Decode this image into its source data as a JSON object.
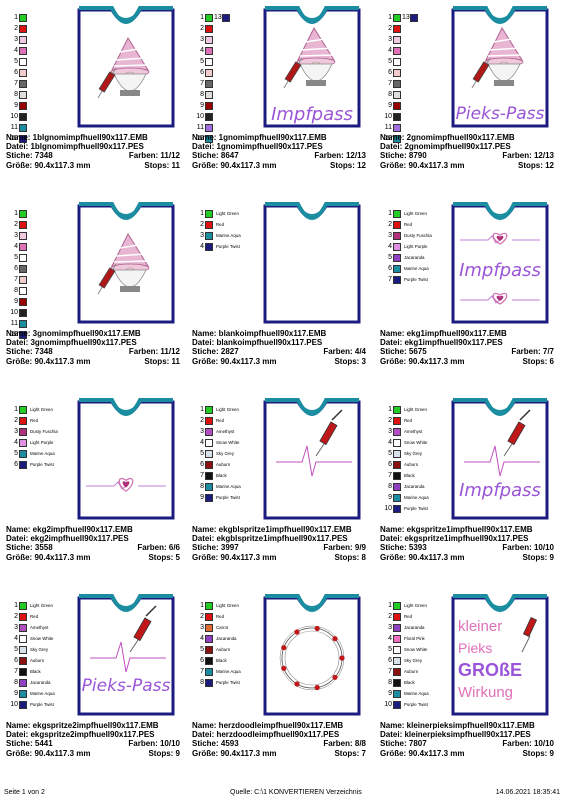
{
  "cells": [
    {
      "name": "Name: 1blgnomimpfhuell90x117.EMB",
      "datei": "Datei: 1blgnomimpfhuell90x117.PES",
      "stiche": "Stiche: 7348",
      "farben": "Farben: 11/12",
      "groesse": "Größe: 90.4x117.3 mm",
      "stops": "Stops: 11",
      "art": "gnome",
      "text": "",
      "swatches": [
        {
          "n": "1",
          "c": "#22cc22",
          "l": ""
        },
        {
          "n": "2",
          "c": "#dd1111",
          "l": ""
        },
        {
          "n": "3",
          "c": "#f0c8e0",
          "l": ""
        },
        {
          "n": "4",
          "c": "#e070b8",
          "l": ""
        },
        {
          "n": "5",
          "c": "#ffffff",
          "l": ""
        },
        {
          "n": "6",
          "c": "#f2cccc",
          "l": ""
        },
        {
          "n": "7",
          "c": "#666666",
          "l": ""
        },
        {
          "n": "8",
          "c": "#dddddd",
          "l": ""
        },
        {
          "n": "9",
          "c": "#990000",
          "l": ""
        },
        {
          "n": "10",
          "c": "#222222",
          "l": ""
        },
        {
          "n": "11",
          "c": "#1a8ea0",
          "l": ""
        },
        {
          "n": "12",
          "c": "#1c1c80",
          "l": ""
        }
      ]
    },
    {
      "name": "Name: 1gnomimpfhuell90x117.EMB",
      "datei": "Datei: 1gnomimpfhuell90x117.PES",
      "stiche": "Stiche: 8647",
      "farben": "Farben: 12/13",
      "groesse": "Größe: 90.4x117.3 mm",
      "stops": "Stops: 12",
      "art": "gnome",
      "text": "Impfpass",
      "extra": "13",
      "swatches": [
        {
          "n": "1",
          "c": "#22cc22",
          "l": ""
        },
        {
          "n": "2",
          "c": "#dd1111",
          "l": ""
        },
        {
          "n": "3",
          "c": "#f0c8e0",
          "l": ""
        },
        {
          "n": "4",
          "c": "#e070b8",
          "l": ""
        },
        {
          "n": "5",
          "c": "#ffffff",
          "l": ""
        },
        {
          "n": "6",
          "c": "#f2cccc",
          "l": ""
        },
        {
          "n": "7",
          "c": "#666666",
          "l": ""
        },
        {
          "n": "8",
          "c": "#dddddd",
          "l": ""
        },
        {
          "n": "9",
          "c": "#990000",
          "l": ""
        },
        {
          "n": "10",
          "c": "#222222",
          "l": ""
        },
        {
          "n": "11",
          "c": "#a070e0",
          "l": ""
        },
        {
          "n": "12",
          "c": "#1a8ea0",
          "l": ""
        }
      ]
    },
    {
      "name": "Name: 2gnomimpfhuell90x117.EMB",
      "datei": "Datei: 2gnomimpfhuell90x117.PES",
      "stiche": "Stiche: 8790",
      "farben": "Farben: 12/13",
      "groesse": "Größe: 90.4x117.3 mm",
      "stops": "Stops: 12",
      "art": "gnome",
      "text": "Pieks-Pass",
      "extra": "13",
      "swatches": [
        {
          "n": "1",
          "c": "#22cc22",
          "l": ""
        },
        {
          "n": "2",
          "c": "#dd1111",
          "l": ""
        },
        {
          "n": "3",
          "c": "#f0c8e0",
          "l": ""
        },
        {
          "n": "4",
          "c": "#e070b8",
          "l": ""
        },
        {
          "n": "5",
          "c": "#ffffff",
          "l": ""
        },
        {
          "n": "6",
          "c": "#f2cccc",
          "l": ""
        },
        {
          "n": "7",
          "c": "#666666",
          "l": ""
        },
        {
          "n": "8",
          "c": "#dddddd",
          "l": ""
        },
        {
          "n": "9",
          "c": "#990000",
          "l": ""
        },
        {
          "n": "10",
          "c": "#222222",
          "l": ""
        },
        {
          "n": "11",
          "c": "#a070e0",
          "l": ""
        },
        {
          "n": "12",
          "c": "#1a8ea0",
          "l": ""
        }
      ]
    },
    {
      "name": "Name: 3gnomimpfhuell90x117.EMB",
      "datei": "Datei: 3gnomimpfhuell90x117.PES",
      "stiche": "Stiche: 7348",
      "farben": "Farben: 11/12",
      "groesse": "Größe: 90.4x117.3 mm",
      "stops": "Stops: 11",
      "art": "gnome",
      "text": "",
      "swatches": [
        {
          "n": "1",
          "c": "#22cc22",
          "l": ""
        },
        {
          "n": "2",
          "c": "#dd1111",
          "l": ""
        },
        {
          "n": "3",
          "c": "#f0c8e0",
          "l": ""
        },
        {
          "n": "4",
          "c": "#e070b8",
          "l": ""
        },
        {
          "n": "5",
          "c": "#ffffff",
          "l": ""
        },
        {
          "n": "6",
          "c": "#666666",
          "l": ""
        },
        {
          "n": "7",
          "c": "#f2cccc",
          "l": ""
        },
        {
          "n": "8",
          "c": "#ffffff",
          "l": ""
        },
        {
          "n": "9",
          "c": "#990000",
          "l": ""
        },
        {
          "n": "10",
          "c": "#222222",
          "l": ""
        },
        {
          "n": "11",
          "c": "#1a8ea0",
          "l": ""
        },
        {
          "n": "12",
          "c": "#1c1c80",
          "l": ""
        }
      ]
    },
    {
      "name": "Name: blankoimpfhuell90x117.EMB",
      "datei": "Datei: blankoimpfhuell90x117.PES",
      "stiche": "Stiche: 2827",
      "farben": "Farben: 4/4",
      "groesse": "Größe: 90.4x117.3 mm",
      "stops": "Stops: 3",
      "art": "blank",
      "text": "",
      "swatches": [
        {
          "n": "1",
          "c": "#22cc22",
          "l": "Light Green"
        },
        {
          "n": "2",
          "c": "#dd1111",
          "l": "Red"
        },
        {
          "n": "3",
          "c": "#1a8ea0",
          "l": "Marine Aqua"
        },
        {
          "n": "4",
          "c": "#1c1c80",
          "l": "Purple Twist"
        }
      ]
    },
    {
      "name": "Name: ekg1impfhuell90x117.EMB",
      "datei": "Datei: ekg1impfhuell90x117.PES",
      "stiche": "Stiche: 5675",
      "farben": "Farben: 7/7",
      "groesse": "Größe: 90.4x117.3 mm",
      "stops": "Stops: 6",
      "art": "ekg2",
      "text": "Impfpass",
      "swatches": [
        {
          "n": "1",
          "c": "#22cc22",
          "l": "Light Green"
        },
        {
          "n": "2",
          "c": "#dd1111",
          "l": "Red"
        },
        {
          "n": "3",
          "c": "#b0307a",
          "l": "Dusty Fuschia"
        },
        {
          "n": "4",
          "c": "#e090e0",
          "l": "Light Purple"
        },
        {
          "n": "5",
          "c": "#9040c0",
          "l": "Jacaranda"
        },
        {
          "n": "6",
          "c": "#1a8ea0",
          "l": "Marine Aqua"
        },
        {
          "n": "7",
          "c": "#1c1c80",
          "l": "Purple Twist"
        }
      ]
    },
    {
      "name": "Name: ekg2impfhuell90x117.EMB",
      "datei": "Datei: ekg2impfhuell90x117.PES",
      "stiche": "Stiche: 3558",
      "farben": "Farben: 6/6",
      "groesse": "Größe: 90.4x117.3 mm",
      "stops": "Stops: 5",
      "art": "ekg1",
      "text": "",
      "swatches": [
        {
          "n": "1",
          "c": "#22cc22",
          "l": "Light Green"
        },
        {
          "n": "2",
          "c": "#dd1111",
          "l": "Red"
        },
        {
          "n": "3",
          "c": "#b0307a",
          "l": "Dusty Fuschia"
        },
        {
          "n": "4",
          "c": "#e090e0",
          "l": "Light Purple"
        },
        {
          "n": "5",
          "c": "#1a8ea0",
          "l": "Marine Aqua"
        },
        {
          "n": "6",
          "c": "#1c1c80",
          "l": "Purple Twist"
        }
      ]
    },
    {
      "name": "Name: ekgblspritze1impfhuell90x117.EMB",
      "datei": "Datei: ekgblspritze1impfhuell90x117.PES",
      "stiche": "Stiche: 3997",
      "farben": "Farben: 9/9",
      "groesse": "Größe: 90.4x117.3 mm",
      "stops": "Stops: 8",
      "art": "syringe",
      "text": "",
      "swatches": [
        {
          "n": "1",
          "c": "#22cc22",
          "l": "Light Green"
        },
        {
          "n": "2",
          "c": "#dd1111",
          "l": "Red"
        },
        {
          "n": "3",
          "c": "#b050c0",
          "l": "Amethyst"
        },
        {
          "n": "4",
          "c": "#ffffff",
          "l": "Snow White"
        },
        {
          "n": "5",
          "c": "#d8e0ea",
          "l": "Sky Grey"
        },
        {
          "n": "6",
          "c": "#8b1010",
          "l": "Auburn"
        },
        {
          "n": "7",
          "c": "#111111",
          "l": "Black"
        },
        {
          "n": "8",
          "c": "#1a8ea0",
          "l": "Marine Aqua"
        },
        {
          "n": "9",
          "c": "#1c1c80",
          "l": "Purple Twist"
        }
      ]
    },
    {
      "name": "Name: ekgspritze1impfhuell90x117.EMB",
      "datei": "Datei: ekgspritze1impfhuell90x117.PES",
      "stiche": "Stiche: 5393",
      "farben": "Farben: 10/10",
      "groesse": "Größe: 90.4x117.3 mm",
      "stops": "Stops: 9",
      "art": "syringe",
      "text": "Impfpass",
      "swatches": [
        {
          "n": "1",
          "c": "#22cc22",
          "l": "Light Green"
        },
        {
          "n": "2",
          "c": "#dd1111",
          "l": "Red"
        },
        {
          "n": "3",
          "c": "#b050c0",
          "l": "Amethyst"
        },
        {
          "n": "4",
          "c": "#ffffff",
          "l": "Snow White"
        },
        {
          "n": "5",
          "c": "#d8e0ea",
          "l": "Sky Grey"
        },
        {
          "n": "6",
          "c": "#8b1010",
          "l": "Auburn"
        },
        {
          "n": "7",
          "c": "#111111",
          "l": "Black"
        },
        {
          "n": "8",
          "c": "#9040c0",
          "l": "Jacaranda"
        },
        {
          "n": "9",
          "c": "#1a8ea0",
          "l": "Marine Aqua"
        },
        {
          "n": "10",
          "c": "#1c1c80",
          "l": "Purple Twist"
        }
      ]
    },
    {
      "name": "Name: ekgspritze2impfhuell90x117.EMB",
      "datei": "Datei: ekgspritze2impfhuell90x117.PES",
      "stiche": "Stiche: 5441",
      "farben": "Farben: 10/10",
      "groesse": "Größe: 90.4x117.3 mm",
      "stops": "Stops: 9",
      "art": "syringe",
      "text": "Pieks-Pass",
      "swatches": [
        {
          "n": "1",
          "c": "#22cc22",
          "l": "Light Green"
        },
        {
          "n": "2",
          "c": "#dd1111",
          "l": "Red"
        },
        {
          "n": "3",
          "c": "#b050c0",
          "l": "Amethyst"
        },
        {
          "n": "4",
          "c": "#ffffff",
          "l": "Snow White"
        },
        {
          "n": "5",
          "c": "#d8e0ea",
          "l": "Sky Grey"
        },
        {
          "n": "6",
          "c": "#8b1010",
          "l": "Auburn"
        },
        {
          "n": "7",
          "c": "#111111",
          "l": "Black"
        },
        {
          "n": "8",
          "c": "#9040c0",
          "l": "Jacaranda"
        },
        {
          "n": "9",
          "c": "#1a8ea0",
          "l": "Marine Aqua"
        },
        {
          "n": "10",
          "c": "#1c1c80",
          "l": "Purple Twist"
        }
      ]
    },
    {
      "name": "Name: herzdoodleimpfhuell90x117.EMB",
      "datei": "Datei: herzdoodleimpfhuell90x117.PES",
      "stiche": "Stiche: 4593",
      "farben": "Farben: 8/8",
      "groesse": "Größe: 90.4x117.3 mm",
      "stops": "Stops: 7",
      "art": "wreath",
      "text": "",
      "swatches": [
        {
          "n": "1",
          "c": "#22cc22",
          "l": "Light Green"
        },
        {
          "n": "2",
          "c": "#dd1111",
          "l": "Red"
        },
        {
          "n": "3",
          "c": "#e06a30",
          "l": "Carrot"
        },
        {
          "n": "4",
          "c": "#9040c0",
          "l": "Jacaranda"
        },
        {
          "n": "5",
          "c": "#8b1010",
          "l": "Auburn"
        },
        {
          "n": "6",
          "c": "#111111",
          "l": "Black"
        },
        {
          "n": "7",
          "c": "#1a8ea0",
          "l": "Marine Aqua"
        },
        {
          "n": "8",
          "c": "#1c1c80",
          "l": "Purple Twist"
        }
      ]
    },
    {
      "name": "Name: kleinerpieksimpfhuell90x117.EMB",
      "datei": "Datei: kleinerpieksimpfhuell90x117.PES",
      "stiche": "Stiche: 7807",
      "farben": "Farben: 10/10",
      "groesse": "Größe: 90.4x117.3 mm",
      "stops": "Stops: 9",
      "art": "kleiner",
      "text": "",
      "words": [
        "kleiner",
        "Pieks",
        "GROßE",
        "Wirkung"
      ],
      "swatches": [
        {
          "n": "1",
          "c": "#22cc22",
          "l": "Light Green"
        },
        {
          "n": "2",
          "c": "#dd1111",
          "l": "Red"
        },
        {
          "n": "3",
          "c": "#9040c0",
          "l": "Jacaranda"
        },
        {
          "n": "4",
          "c": "#f070c0",
          "l": "Floral Pink"
        },
        {
          "n": "5",
          "c": "#ffffff",
          "l": "Snow White"
        },
        {
          "n": "6",
          "c": "#d8e0ea",
          "l": "Sky Grey"
        },
        {
          "n": "7",
          "c": "#8b1010",
          "l": "Auburn"
        },
        {
          "n": "8",
          "c": "#111111",
          "l": "Black"
        },
        {
          "n": "9",
          "c": "#1a8ea0",
          "l": "Marine Aqua"
        },
        {
          "n": "10",
          "c": "#1c1c80",
          "l": "Purple Twist"
        }
      ]
    }
  ],
  "footer": {
    "page": "Seite 1 von 2",
    "source": "Quelle: C:\\1 KONVERTIEREN Verzeichnis",
    "date": "14.06.2021 18:35:41"
  }
}
